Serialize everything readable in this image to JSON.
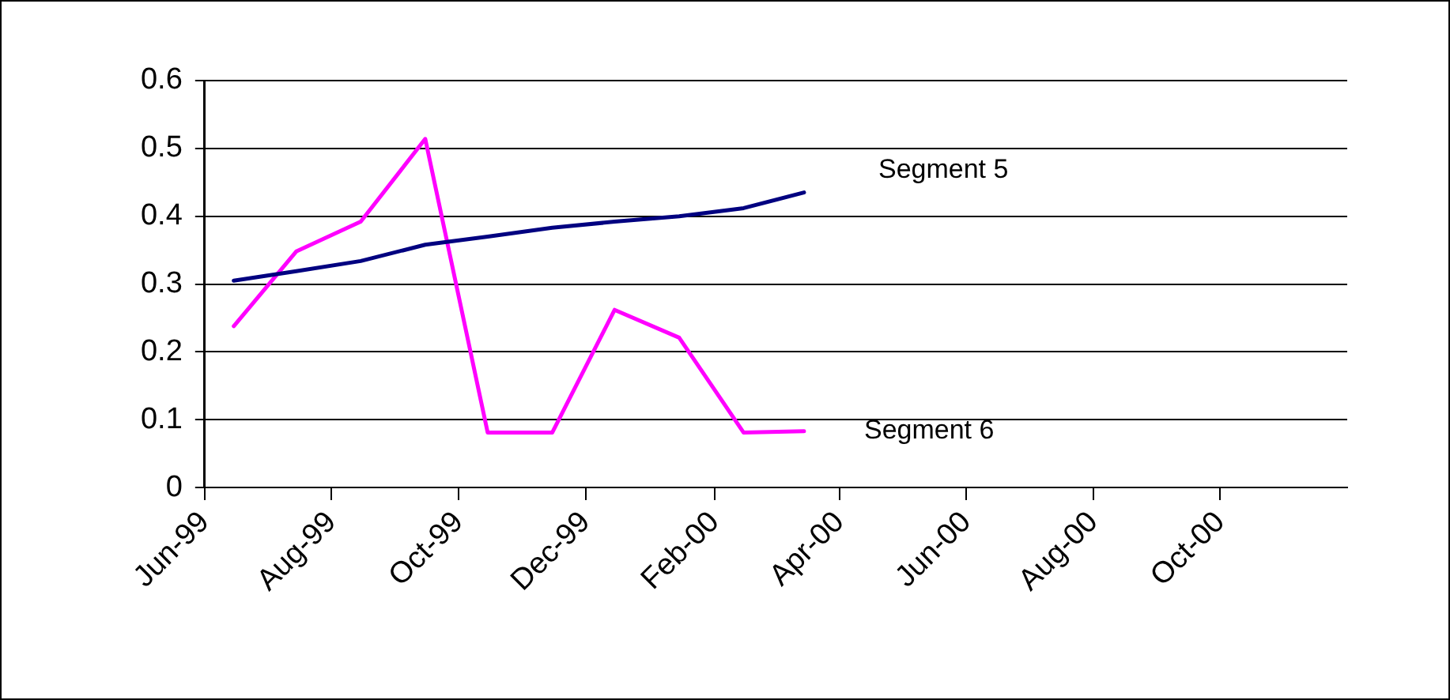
{
  "chart_data": {
    "type": "line",
    "x": [
      "1999-06-15",
      "1999-07-15",
      "1999-08-15",
      "1999-09-15",
      "1999-10-15",
      "1999-11-15",
      "1999-12-15",
      "2000-01-15",
      "2000-02-15",
      "2000-03-15"
    ],
    "series": [
      {
        "name": "Segment 5",
        "color": "#000080",
        "values": [
          0.305,
          0.319,
          0.334,
          0.358,
          0.37,
          0.383,
          0.392,
          0.4,
          0.412,
          0.435
        ]
      },
      {
        "name": "Segment 6",
        "color": "#ff00ff",
        "values": [
          0.238,
          0.348,
          0.392,
          0.514,
          0.081,
          0.081,
          0.262,
          0.221,
          0.081,
          0.083
        ]
      }
    ],
    "xlim": [
      "1999-06-01",
      "2000-12-01"
    ],
    "xticks": [
      {
        "value": "1999-06-01",
        "label": "Jun-99"
      },
      {
        "value": "1999-08-01",
        "label": "Aug-99"
      },
      {
        "value": "1999-10-01",
        "label": "Oct-99"
      },
      {
        "value": "1999-12-01",
        "label": "Dec-99"
      },
      {
        "value": "2000-02-01",
        "label": "Feb-00"
      },
      {
        "value": "2000-04-01",
        "label": "Apr-00"
      },
      {
        "value": "2000-06-01",
        "label": "Jun-00"
      },
      {
        "value": "2000-08-01",
        "label": "Aug-00"
      },
      {
        "value": "2000-10-01",
        "label": "Oct-00"
      }
    ],
    "ylim": [
      0,
      0.6
    ],
    "yticks": [
      0,
      0.1,
      0.2,
      0.3,
      0.4,
      0.5,
      0.6
    ],
    "grid": "y",
    "legend": false,
    "marker": "none",
    "line_style": "solid"
  }
}
